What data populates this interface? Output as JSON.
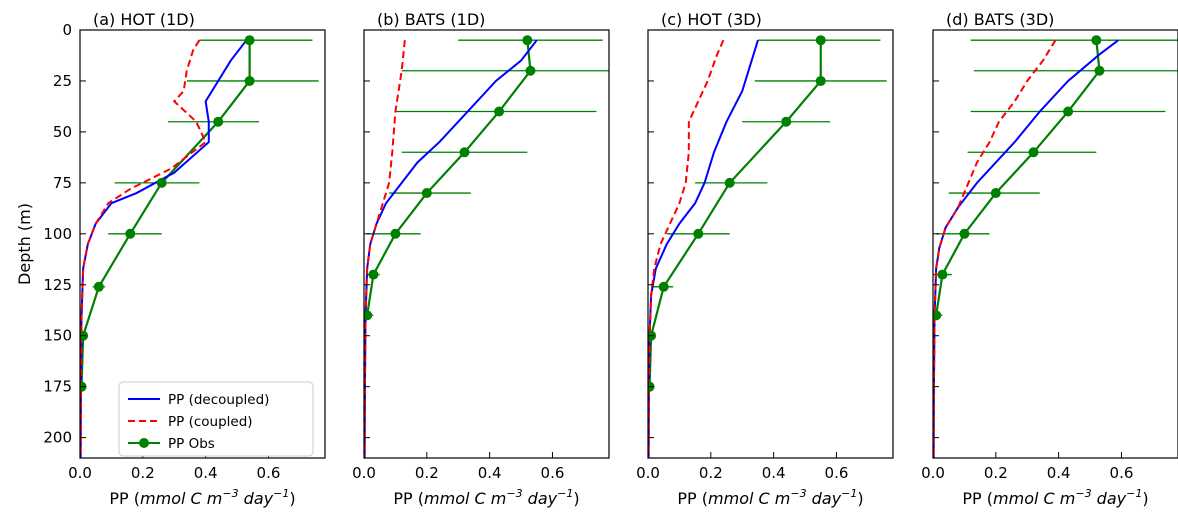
{
  "figure": {
    "ylabel": "Depth (m)",
    "xlabel_parts": [
      "PP (",
      "mmol C m",
      "−3",
      " day",
      "−1",
      ")"
    ],
    "legend": {
      "entries": [
        "PP (decoupled)",
        "PP (coupled)",
        "PP Obs"
      ],
      "placement": "lower-left of panel (a)"
    },
    "colors": {
      "decoupled": "#0000ff",
      "coupled": "#ff0000",
      "obs": "#008000"
    }
  },
  "chart_data": [
    {
      "type": "line",
      "title": "(a) HOT (1D)",
      "xlim": [
        0,
        0.78
      ],
      "ylim": [
        210,
        0
      ],
      "xticks": [
        0.0,
        0.2,
        0.4,
        0.6
      ],
      "yticks": [
        0,
        25,
        50,
        75,
        100,
        125,
        150,
        175,
        200
      ],
      "xticklabels": [
        "0.0",
        "0.2",
        "0.4",
        "0.6"
      ],
      "yticklabels": [
        "0",
        "25",
        "50",
        "75",
        "100",
        "125",
        "150",
        "175",
        "200"
      ],
      "series": [
        {
          "name": "PP (decoupled)",
          "style": "solid",
          "x": [
            0.53,
            0.48,
            0.4,
            0.41,
            0.41,
            0.3,
            0.18,
            0.1,
            0.05,
            0.025,
            0.01,
            0.005,
            0.003,
            0.002
          ],
          "y": [
            5,
            15,
            35,
            45,
            55,
            70,
            80,
            85,
            95,
            105,
            117,
            140,
            175,
            210
          ]
        },
        {
          "name": "PP (coupled)",
          "style": "dashed",
          "x": [
            0.38,
            0.36,
            0.34,
            0.33,
            0.3,
            0.37,
            0.4,
            0.29,
            0.16,
            0.09,
            0.05,
            0.025,
            0.01,
            0.005,
            0.003,
            0.002
          ],
          "y": [
            5,
            10,
            20,
            30,
            35,
            45,
            55,
            68,
            78,
            85,
            95,
            105,
            117,
            140,
            175,
            210
          ]
        },
        {
          "name": "PP Obs",
          "x": [
            0.54,
            0.54,
            0.44,
            0.26,
            0.16,
            0.06,
            0.01,
            0.005
          ],
          "y": [
            5,
            25,
            45,
            75,
            100,
            126,
            150,
            175
          ],
          "xerr_low": [
            0.38,
            0.34,
            0.28,
            0.11,
            0.09,
            0.04,
            0.0,
            0.0
          ],
          "xerr_high": [
            0.74,
            0.76,
            0.57,
            0.38,
            0.26,
            0.08,
            0.0,
            0.0
          ]
        }
      ]
    },
    {
      "type": "line",
      "title": "(b) BATS (1D)",
      "xlim": [
        0,
        0.78
      ],
      "ylim": [
        210,
        0
      ],
      "xticks": [
        0.0,
        0.2,
        0.4,
        0.6
      ],
      "yticks": [
        0,
        25,
        50,
        75,
        100,
        125,
        150,
        175,
        200
      ],
      "xticklabels": [
        "0.0",
        "0.2",
        "0.4",
        "0.6"
      ],
      "yticklabels": [],
      "series": [
        {
          "name": "PP (decoupled)",
          "style": "solid",
          "x": [
            0.55,
            0.5,
            0.42,
            0.33,
            0.24,
            0.17,
            0.12,
            0.07,
            0.04,
            0.02,
            0.01,
            0.005,
            0.003,
            0.002
          ],
          "y": [
            5,
            15,
            25,
            40,
            55,
            65,
            75,
            85,
            95,
            105,
            117,
            140,
            175,
            210
          ]
        },
        {
          "name": "PP (coupled)",
          "style": "dashed",
          "x": [
            0.13,
            0.12,
            0.1,
            0.09,
            0.08,
            0.06,
            0.04,
            0.02,
            0.01,
            0.005,
            0.003,
            0.002
          ],
          "y": [
            5,
            20,
            40,
            60,
            75,
            85,
            95,
            105,
            117,
            140,
            175,
            210
          ]
        },
        {
          "name": "PP Obs",
          "x": [
            0.52,
            0.53,
            0.43,
            0.32,
            0.2,
            0.1,
            0.03,
            0.01
          ],
          "y": [
            5,
            20,
            40,
            60,
            80,
            100,
            120,
            140
          ],
          "xerr_low": [
            0.3,
            0.12,
            0.1,
            0.12,
            0.08,
            0.01,
            0.01,
            0.0
          ],
          "xerr_high": [
            0.76,
            0.78,
            0.74,
            0.52,
            0.34,
            0.18,
            0.05,
            0.03
          ]
        }
      ]
    },
    {
      "type": "line",
      "title": "(c) HOT (3D)",
      "xlim": [
        0,
        0.78
      ],
      "ylim": [
        210,
        0
      ],
      "xticks": [
        0.0,
        0.2,
        0.4,
        0.6
      ],
      "yticks": [
        0,
        25,
        50,
        75,
        100,
        125,
        150,
        175,
        200
      ],
      "xticklabels": [
        "0.0",
        "0.2",
        "0.4",
        "0.6"
      ],
      "yticklabels": [],
      "series": [
        {
          "name": "PP (decoupled)",
          "style": "solid",
          "x": [
            0.35,
            0.33,
            0.3,
            0.25,
            0.21,
            0.18,
            0.15,
            0.1,
            0.06,
            0.025,
            0.01,
            0.005,
            0.003,
            0.002
          ],
          "y": [
            5,
            15,
            30,
            45,
            60,
            75,
            85,
            95,
            105,
            117,
            130,
            150,
            175,
            210
          ]
        },
        {
          "name": "PP (coupled)",
          "style": "dashed",
          "x": [
            0.24,
            0.22,
            0.19,
            0.16,
            0.13,
            0.13,
            0.12,
            0.1,
            0.07,
            0.04,
            0.02,
            0.01,
            0.005,
            0.003,
            0.002
          ],
          "y": [
            5,
            12,
            25,
            35,
            45,
            60,
            75,
            85,
            95,
            105,
            117,
            130,
            150,
            175,
            210
          ]
        },
        {
          "name": "PP Obs",
          "x": [
            0.55,
            0.55,
            0.44,
            0.26,
            0.16,
            0.05,
            0.01,
            0.005
          ],
          "y": [
            5,
            25,
            45,
            75,
            100,
            126,
            150,
            175
          ],
          "xerr_low": [
            0.35,
            0.34,
            0.3,
            0.15,
            0.06,
            0.01,
            0.0,
            0.0
          ],
          "xerr_high": [
            0.74,
            0.76,
            0.58,
            0.38,
            0.26,
            0.08,
            0.0,
            0.0
          ]
        }
      ]
    },
    {
      "type": "line",
      "title": "(d) BATS (3D)",
      "xlim": [
        0,
        0.78
      ],
      "ylim": [
        210,
        0
      ],
      "xticks": [
        0.0,
        0.2,
        0.4,
        0.6
      ],
      "yticks": [
        0,
        25,
        50,
        75,
        100,
        125,
        150,
        175,
        200
      ],
      "xticklabels": [
        "0.0",
        "0.2",
        "0.4",
        "0.6"
      ],
      "yticklabels": [],
      "series": [
        {
          "name": "PP (decoupled)",
          "style": "solid",
          "x": [
            0.59,
            0.53,
            0.43,
            0.34,
            0.26,
            0.2,
            0.14,
            0.08,
            0.04,
            0.02,
            0.01,
            0.005,
            0.003,
            0.002
          ],
          "y": [
            5,
            12,
            25,
            40,
            55,
            65,
            75,
            87,
            97,
            107,
            117,
            140,
            175,
            210
          ]
        },
        {
          "name": "PP (coupled)",
          "style": "dashed",
          "x": [
            0.39,
            0.35,
            0.3,
            0.26,
            0.21,
            0.18,
            0.14,
            0.08,
            0.04,
            0.02,
            0.01,
            0.005,
            0.003,
            0.002
          ],
          "y": [
            5,
            15,
            25,
            35,
            45,
            55,
            65,
            87,
            97,
            107,
            117,
            140,
            175,
            210
          ]
        },
        {
          "name": "PP Obs",
          "x": [
            0.52,
            0.53,
            0.43,
            0.32,
            0.2,
            0.1,
            0.03,
            0.01
          ],
          "y": [
            5,
            20,
            40,
            60,
            80,
            100,
            120,
            140
          ],
          "xerr_low": [
            0.12,
            0.13,
            0.12,
            0.11,
            0.05,
            0.01,
            0.0,
            0.0
          ],
          "xerr_high": [
            0.85,
            0.86,
            0.74,
            0.52,
            0.34,
            0.18,
            0.06,
            0.03
          ]
        }
      ]
    }
  ]
}
